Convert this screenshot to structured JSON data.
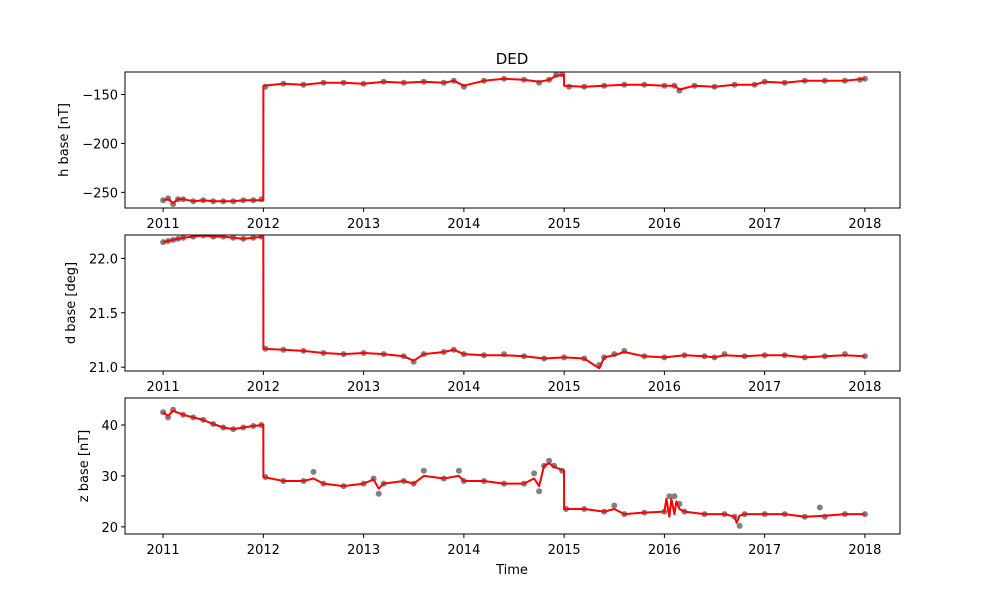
{
  "chart_data": [
    {
      "type": "scatter",
      "title": "DED",
      "xlabel": "",
      "ylabel": "h base [nT]",
      "xlim": [
        2010.62,
        2018.35
      ],
      "ylim": [
        -266,
        -127
      ],
      "x_ticks": [
        2011,
        2012,
        2013,
        2014,
        2015,
        2016,
        2017,
        2018
      ],
      "x_tick_labels": [
        "2011",
        "2012",
        "2013",
        "2014",
        "2015",
        "2016",
        "2017",
        "2018"
      ],
      "y_ticks": [
        -250,
        -200,
        -150
      ],
      "y_tick_labels": [
        "−250",
        "−200",
        "−150"
      ],
      "series": [
        {
          "kind": "points",
          "color": "#808080",
          "x": [
            2011.0,
            2011.05,
            2011.1,
            2011.15,
            2011.2,
            2011.3,
            2011.4,
            2011.5,
            2011.6,
            2011.7,
            2011.8,
            2011.9,
            2011.98,
            2012.02,
            2012.2,
            2012.4,
            2012.6,
            2012.8,
            2013.0,
            2013.2,
            2013.4,
            2013.6,
            2013.8,
            2013.9,
            2014.0,
            2014.2,
            2014.4,
            2014.6,
            2014.75,
            2014.85,
            2014.92,
            2014.98,
            2015.05,
            2015.2,
            2015.4,
            2015.6,
            2015.8,
            2016.0,
            2016.1,
            2016.15,
            2016.3,
            2016.5,
            2016.7,
            2016.9,
            2017.0,
            2017.2,
            2017.4,
            2017.6,
            2017.8,
            2017.95,
            2018.0
          ],
          "y": [
            -258,
            -256,
            -262,
            -257,
            -257,
            -259,
            -258,
            -259,
            -259,
            -259,
            -258,
            -258,
            -257,
            -142,
            -139,
            -140,
            -138,
            -138,
            -139,
            -137,
            -138,
            -137,
            -138,
            -136,
            -142,
            -136,
            -134,
            -135,
            -138,
            -135,
            -130,
            -129,
            -142,
            -142,
            -141,
            -140,
            -140,
            -141,
            -141,
            -146,
            -141,
            -142,
            -140,
            -140,
            -137,
            -138,
            -136,
            -136,
            -136,
            -135,
            -134
          ]
        },
        {
          "kind": "line",
          "color": "#ff0000",
          "x": [
            2011.0,
            2011.05,
            2011.1,
            2011.15,
            2011.2,
            2011.3,
            2011.4,
            2011.5,
            2011.6,
            2011.7,
            2011.8,
            2011.9,
            2011.999,
            2012.0,
            2012.2,
            2012.4,
            2012.6,
            2012.8,
            2013.0,
            2013.2,
            2013.4,
            2013.6,
            2013.8,
            2013.9,
            2014.0,
            2014.2,
            2014.4,
            2014.6,
            2014.75,
            2014.85,
            2014.92,
            2014.999,
            2015.0,
            2015.2,
            2015.4,
            2015.6,
            2015.8,
            2016.0,
            2016.1,
            2016.15,
            2016.3,
            2016.5,
            2016.7,
            2016.9,
            2017.0,
            2017.2,
            2017.4,
            2017.6,
            2017.8,
            2018.0
          ],
          "y": [
            -258,
            -257,
            -261,
            -257,
            -257,
            -259,
            -258,
            -259,
            -259,
            -259,
            -258,
            -258,
            -258,
            -141,
            -139,
            -140,
            -138,
            -138,
            -139,
            -137,
            -138,
            -137,
            -138,
            -136,
            -141,
            -136,
            -134,
            -135,
            -137,
            -135,
            -131,
            -130,
            -141,
            -142,
            -141,
            -140,
            -140,
            -141,
            -141,
            -145,
            -141,
            -142,
            -140,
            -140,
            -137,
            -138,
            -136,
            -136,
            -136,
            -134
          ]
        }
      ]
    },
    {
      "type": "scatter",
      "title": "",
      "xlabel": "",
      "ylabel": "d base [deg]",
      "xlim": [
        2010.62,
        2018.35
      ],
      "ylim": [
        20.965,
        22.215
      ],
      "x_ticks": [
        2011,
        2012,
        2013,
        2014,
        2015,
        2016,
        2017,
        2018
      ],
      "x_tick_labels": [
        "2011",
        "2012",
        "2013",
        "2014",
        "2015",
        "2016",
        "2017",
        "2018"
      ],
      "y_ticks": [
        21.0,
        21.5,
        22.0
      ],
      "y_tick_labels": [
        "21.0",
        "21.5",
        "22.0"
      ],
      "series": [
        {
          "kind": "points",
          "color": "#808080",
          "x": [
            2011.0,
            2011.05,
            2011.1,
            2011.15,
            2011.2,
            2011.3,
            2011.4,
            2011.5,
            2011.6,
            2011.7,
            2011.8,
            2011.9,
            2011.98,
            2012.02,
            2012.2,
            2012.4,
            2012.6,
            2012.8,
            2013.0,
            2013.2,
            2013.4,
            2013.5,
            2013.6,
            2013.8,
            2013.9,
            2014.0,
            2014.2,
            2014.4,
            2014.6,
            2014.8,
            2015.0,
            2015.2,
            2015.35,
            2015.4,
            2015.5,
            2015.6,
            2015.8,
            2016.0,
            2016.2,
            2016.4,
            2016.5,
            2016.6,
            2016.8,
            2017.0,
            2017.2,
            2017.4,
            2017.6,
            2017.8,
            2018.0
          ],
          "y": [
            22.15,
            22.16,
            22.17,
            22.18,
            22.19,
            22.2,
            22.21,
            22.2,
            22.2,
            22.19,
            22.18,
            22.19,
            22.2,
            21.17,
            21.16,
            21.15,
            21.13,
            21.12,
            21.13,
            21.12,
            21.1,
            21.05,
            21.12,
            21.14,
            21.16,
            21.12,
            21.11,
            21.12,
            21.1,
            21.08,
            21.09,
            21.08,
            21.02,
            21.09,
            21.12,
            21.15,
            21.1,
            21.09,
            21.11,
            21.1,
            21.09,
            21.12,
            21.1,
            21.11,
            21.11,
            21.09,
            21.1,
            21.12,
            21.1
          ]
        },
        {
          "kind": "line",
          "color": "#ff0000",
          "x": [
            2011.0,
            2011.05,
            2011.1,
            2011.15,
            2011.2,
            2011.3,
            2011.4,
            2011.5,
            2011.6,
            2011.7,
            2011.8,
            2011.9,
            2011.999,
            2012.0,
            2012.2,
            2012.4,
            2012.6,
            2012.8,
            2013.0,
            2013.2,
            2013.4,
            2013.5,
            2013.6,
            2013.8,
            2013.9,
            2014.0,
            2014.2,
            2014.4,
            2014.6,
            2014.8,
            2015.0,
            2015.2,
            2015.35,
            2015.4,
            2015.5,
            2015.6,
            2015.8,
            2016.0,
            2016.2,
            2016.4,
            2016.5,
            2016.6,
            2016.8,
            2017.0,
            2017.2,
            2017.4,
            2017.6,
            2017.8,
            2018.0
          ],
          "y": [
            22.15,
            22.16,
            22.17,
            22.18,
            22.19,
            22.2,
            22.21,
            22.2,
            22.2,
            22.19,
            22.18,
            22.19,
            22.2,
            21.17,
            21.16,
            21.15,
            21.13,
            21.12,
            21.13,
            21.12,
            21.1,
            21.06,
            21.12,
            21.14,
            21.16,
            21.12,
            21.11,
            21.11,
            21.1,
            21.08,
            21.09,
            21.08,
            20.99,
            21.09,
            21.11,
            21.14,
            21.1,
            21.09,
            21.11,
            21.1,
            21.09,
            21.11,
            21.1,
            21.11,
            21.11,
            21.09,
            21.1,
            21.11,
            21.1
          ]
        }
      ]
    },
    {
      "type": "scatter",
      "title": "",
      "xlabel": "Time",
      "ylabel": "z base [nT]",
      "xlim": [
        2010.62,
        2018.35
      ],
      "ylim": [
        18.6,
        45.3
      ],
      "x_ticks": [
        2011,
        2012,
        2013,
        2014,
        2015,
        2016,
        2017,
        2018
      ],
      "x_tick_labels": [
        "2011",
        "2012",
        "2013",
        "2014",
        "2015",
        "2016",
        "2017",
        "2018"
      ],
      "y_ticks": [
        20,
        30,
        40
      ],
      "y_tick_labels": [
        "20",
        "30",
        "40"
      ],
      "series": [
        {
          "kind": "points",
          "color": "#808080",
          "x": [
            2011.0,
            2011.05,
            2011.1,
            2011.2,
            2011.3,
            2011.4,
            2011.5,
            2011.6,
            2011.7,
            2011.8,
            2011.9,
            2011.98,
            2012.02,
            2012.2,
            2012.4,
            2012.5,
            2012.6,
            2012.8,
            2013.0,
            2013.1,
            2013.15,
            2013.2,
            2013.4,
            2013.5,
            2013.6,
            2013.8,
            2013.95,
            2014.0,
            2014.2,
            2014.4,
            2014.6,
            2014.7,
            2014.75,
            2014.8,
            2014.85,
            2014.9,
            2014.98,
            2015.02,
            2015.2,
            2015.4,
            2015.5,
            2015.6,
            2015.8,
            2016.0,
            2016.05,
            2016.1,
            2016.15,
            2016.2,
            2016.4,
            2016.6,
            2016.7,
            2016.75,
            2016.8,
            2017.0,
            2017.2,
            2017.4,
            2017.55,
            2017.6,
            2017.8,
            2018.0
          ],
          "y": [
            42.5,
            41.5,
            43.0,
            42.0,
            41.5,
            41.0,
            40.2,
            39.5,
            39.2,
            39.5,
            39.8,
            40.0,
            29.8,
            29.0,
            29.0,
            30.8,
            28.5,
            28.0,
            28.5,
            29.5,
            26.5,
            28.5,
            29.0,
            28.5,
            31.0,
            29.5,
            31.0,
            29.0,
            29.0,
            28.5,
            28.5,
            30.5,
            27.0,
            32.0,
            33.0,
            32.0,
            31.0,
            23.5,
            23.5,
            23.0,
            24.2,
            22.5,
            22.8,
            23.0,
            26.0,
            26.0,
            24.5,
            23.0,
            22.5,
            22.5,
            22.0,
            20.2,
            22.5,
            22.5,
            22.5,
            22.0,
            23.8,
            22.0,
            22.5,
            22.5
          ]
        },
        {
          "kind": "line",
          "color": "#ff0000",
          "x": [
            2011.0,
            2011.05,
            2011.1,
            2011.2,
            2011.3,
            2011.4,
            2011.5,
            2011.6,
            2011.7,
            2011.8,
            2011.9,
            2011.999,
            2012.0,
            2012.2,
            2012.4,
            2012.5,
            2012.6,
            2012.8,
            2013.0,
            2013.1,
            2013.15,
            2013.2,
            2013.4,
            2013.5,
            2013.6,
            2013.8,
            2013.95,
            2014.0,
            2014.2,
            2014.4,
            2014.6,
            2014.7,
            2014.75,
            2014.8,
            2014.85,
            2014.9,
            2014.999,
            2015.0,
            2015.2,
            2015.4,
            2015.5,
            2015.6,
            2015.8,
            2016.0,
            2016.02,
            2016.05,
            2016.07,
            2016.1,
            2016.12,
            2016.15,
            2016.2,
            2016.4,
            2016.6,
            2016.7,
            2016.72,
            2016.75,
            2016.8,
            2017.0,
            2017.2,
            2017.4,
            2017.6,
            2017.8,
            2018.0
          ],
          "y": [
            42.5,
            41.8,
            42.8,
            42.0,
            41.5,
            41.0,
            40.2,
            39.5,
            39.2,
            39.5,
            39.8,
            40.0,
            29.8,
            29.0,
            29.0,
            29.5,
            28.5,
            28.0,
            28.5,
            29.3,
            27.5,
            28.5,
            29.0,
            28.5,
            30.0,
            29.5,
            30.0,
            29.0,
            29.0,
            28.5,
            28.5,
            29.5,
            28.0,
            32.0,
            32.5,
            31.8,
            31.0,
            23.5,
            23.5,
            23.0,
            23.5,
            22.5,
            22.8,
            23.0,
            25.5,
            22.0,
            25.5,
            22.5,
            25.0,
            23.5,
            23.0,
            22.5,
            22.5,
            22.0,
            20.8,
            22.2,
            22.5,
            22.5,
            22.5,
            22.0,
            22.2,
            22.5,
            22.5
          ]
        }
      ]
    }
  ]
}
